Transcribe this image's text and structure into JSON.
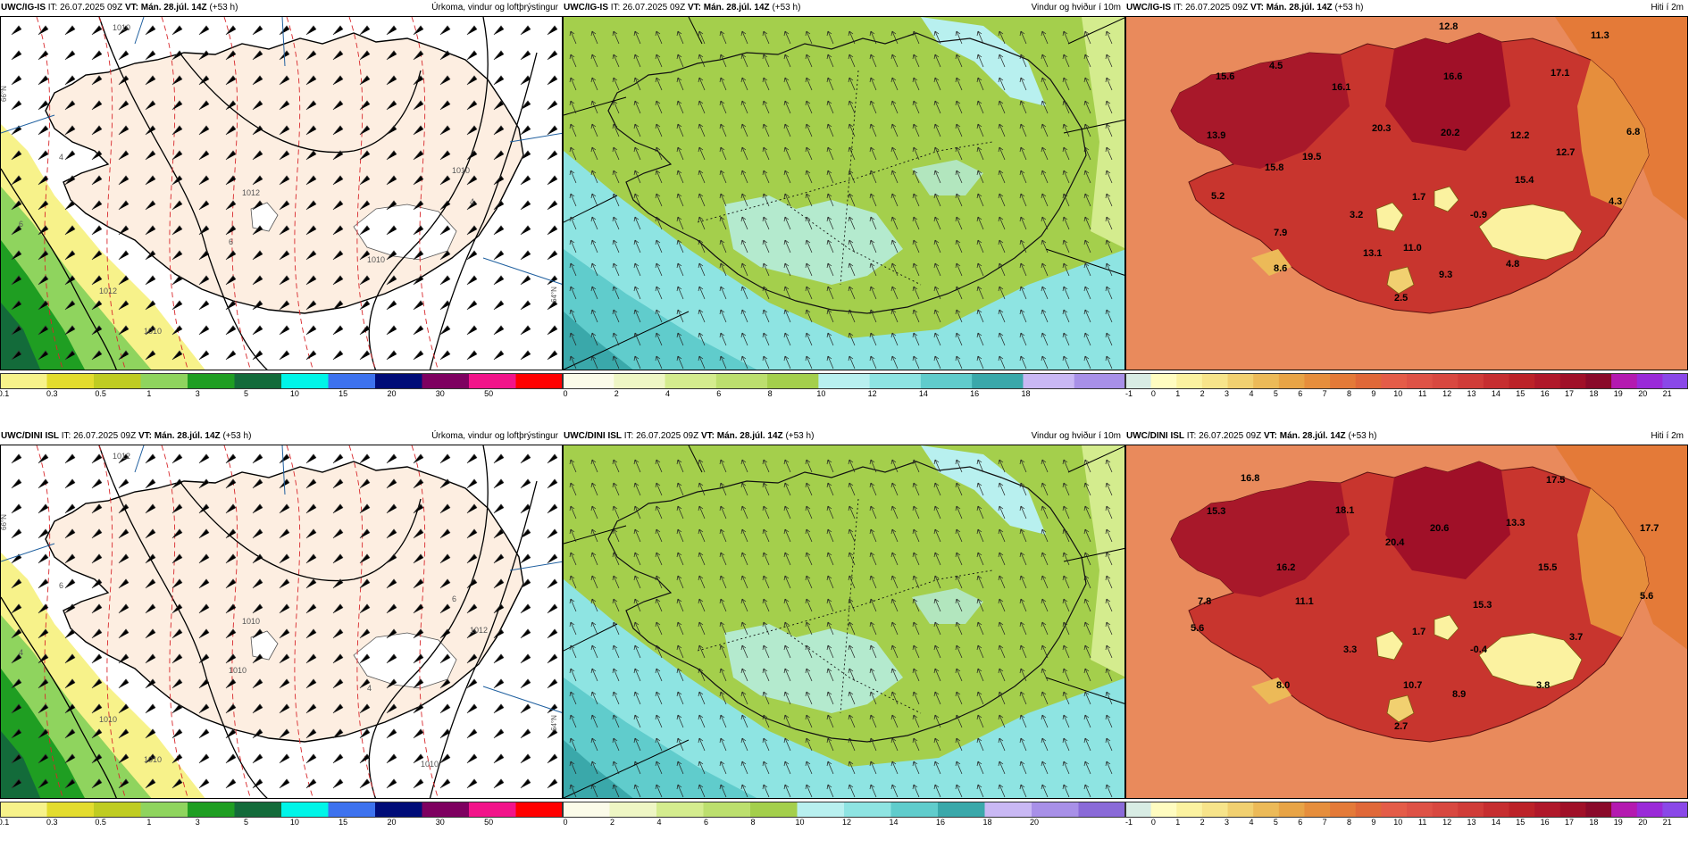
{
  "rows": [
    {
      "panels": [
        {
          "id": "precip",
          "model": "UWC/IG-IS",
          "it": "IT: 26.07.2025 09Z",
          "vt": "VT: Mán. 28.júl. 14Z",
          "lead": "(+53 h)",
          "title": "Úrkoma, vindur og loftþrýstingur",
          "ticks": [
            "0.1",
            "0.3",
            "0.5",
            "1",
            "3",
            "5",
            "10",
            "15",
            "20",
            "30",
            "50"
          ],
          "contour_labels": [
            "1010",
            "1012",
            "1010",
            "4",
            "6",
            "6",
            "4",
            "1012",
            "1010",
            "1010"
          ],
          "lat_labels": [
            "66°N",
            "64°N"
          ],
          "values": []
        },
        {
          "id": "wind",
          "model": "UWC/IG-IS",
          "it": "IT: 26.07.2025 09Z",
          "vt": "VT: Mán. 28.júl. 14Z",
          "lead": "(+53 h)",
          "title": "Vindur og hviður í 10m",
          "ticks": [
            "0",
            "2",
            "4",
            "6",
            "8",
            "10",
            "12",
            "14",
            "16",
            "18"
          ],
          "contour_labels": [],
          "lat_labels": [],
          "values": []
        },
        {
          "id": "temp",
          "model": "UWC/IG-IS",
          "it": "IT: 26.07.2025 09Z",
          "vt": "VT: Mán. 28.júl. 14Z",
          "lead": "(+53 h)",
          "title": "Hiti í 2m",
          "ticks": [
            "-1",
            "0",
            "1",
            "2",
            "3",
            "4",
            "5",
            "6",
            "7",
            "8",
            "9",
            "10",
            "11",
            "12",
            "13",
            "14",
            "15",
            "16",
            "17",
            "18",
            "19",
            "20",
            "21"
          ],
          "contour_labels": [],
          "lat_labels": [],
          "values": [
            "12.8",
            "11.3",
            "15.6",
            "4.5",
            "16.1",
            "16.6",
            "17.1",
            "13.9",
            "20.3",
            "20.2",
            "12.2",
            "6.8",
            "19.5",
            "12.7",
            "15.8",
            "15.4",
            "5.2",
            "1.7",
            "3.2",
            "-0.9",
            "4.3",
            "7.9",
            "11.0",
            "13.1",
            "8.6",
            "9.3",
            "4.8",
            "2.5"
          ]
        }
      ]
    },
    {
      "panels": [
        {
          "id": "precip",
          "model": "UWC/DINI ISL",
          "it": "IT: 26.07.2025 09Z",
          "vt": "VT: Mán. 28.júl. 14Z",
          "lead": "(+53 h)",
          "title": "Úrkoma, vindur og loftþrýstingur",
          "ticks": [
            "0.1",
            "0.3",
            "0.5",
            "1",
            "3",
            "5",
            "10",
            "15",
            "20",
            "30",
            "50"
          ],
          "contour_labels": [
            "1012",
            "1010",
            "6",
            "6",
            "1010",
            "4",
            "1012",
            "1010",
            "1010",
            "4",
            "1010"
          ],
          "lat_labels": [
            "66°N",
            "64°N"
          ],
          "values": []
        },
        {
          "id": "wind",
          "model": "UWC/DINI ISL",
          "it": "IT: 26.07.2025 09Z",
          "vt": "VT: Mán. 28.júl. 14Z",
          "lead": "(+53 h)",
          "title": "Vindur og hviður í 10m",
          "ticks": [
            "0",
            "2",
            "4",
            "6",
            "8",
            "10",
            "12",
            "14",
            "16",
            "18",
            "20"
          ],
          "contour_labels": [],
          "lat_labels": [],
          "values": []
        },
        {
          "id": "temp",
          "model": "UWC/DINI ISL",
          "it": "IT: 26.07.2025 09Z",
          "vt": "VT: Mán. 28.júl. 14Z",
          "lead": "(+53 h)",
          "title": "Hiti í 2m",
          "ticks": [
            "-1",
            "0",
            "1",
            "2",
            "3",
            "4",
            "5",
            "6",
            "7",
            "8",
            "9",
            "10",
            "11",
            "12",
            "13",
            "14",
            "15",
            "16",
            "17",
            "18",
            "19",
            "20",
            "21"
          ],
          "contour_labels": [],
          "lat_labels": [],
          "values": [
            "16.8",
            "17.5",
            "15.3",
            "18.1",
            "13.3",
            "20.6",
            "17.7",
            "20.4",
            "16.2",
            "15.5",
            "11.1",
            "5.6",
            "7.8",
            "15.3",
            "5.6",
            "1.7",
            "3.3",
            "-0.4",
            "3.7",
            "8.0",
            "10.7",
            "8.9",
            "3.8",
            "2.7"
          ]
        }
      ]
    }
  ],
  "colors": {
    "precip_bar": [
      "#f7f28a",
      "#e3dc2e",
      "#bfcc22",
      "#8fd45e",
      "#1f9e22",
      "#136b3a",
      "#00f5e8",
      "#3d72ee",
      "#000c78",
      "#7e0060",
      "#f2148a",
      "#ff0000"
    ],
    "wind_bar": [
      "#fbfbe9",
      "#eef6c4",
      "#d4ec8e",
      "#bcdf6e",
      "#a4cf4c",
      "#b8f0ef",
      "#8ee4e2",
      "#60cccc",
      "#3aa8aa",
      "#c9b8f4",
      "#a890e8",
      "#8a6ad8"
    ],
    "temp_bar": [
      "#d8ece4",
      "#fffcc0",
      "#fbf2a0",
      "#f7e48a",
      "#f1d070",
      "#ecba58",
      "#e8a446",
      "#e68e3c",
      "#e47a38",
      "#e06838",
      "#e45c48",
      "#de5246",
      "#d84840",
      "#d03c38",
      "#c62e30",
      "#bc2228",
      "#b0182a",
      "#a01028",
      "#8a0a2a",
      "#b41ab0",
      "#9a2ad8",
      "#8a48e8"
    ],
    "land": "#fdeee1",
    "sea_warm": "#e98a5c",
    "land_hot": "#c8352e"
  }
}
